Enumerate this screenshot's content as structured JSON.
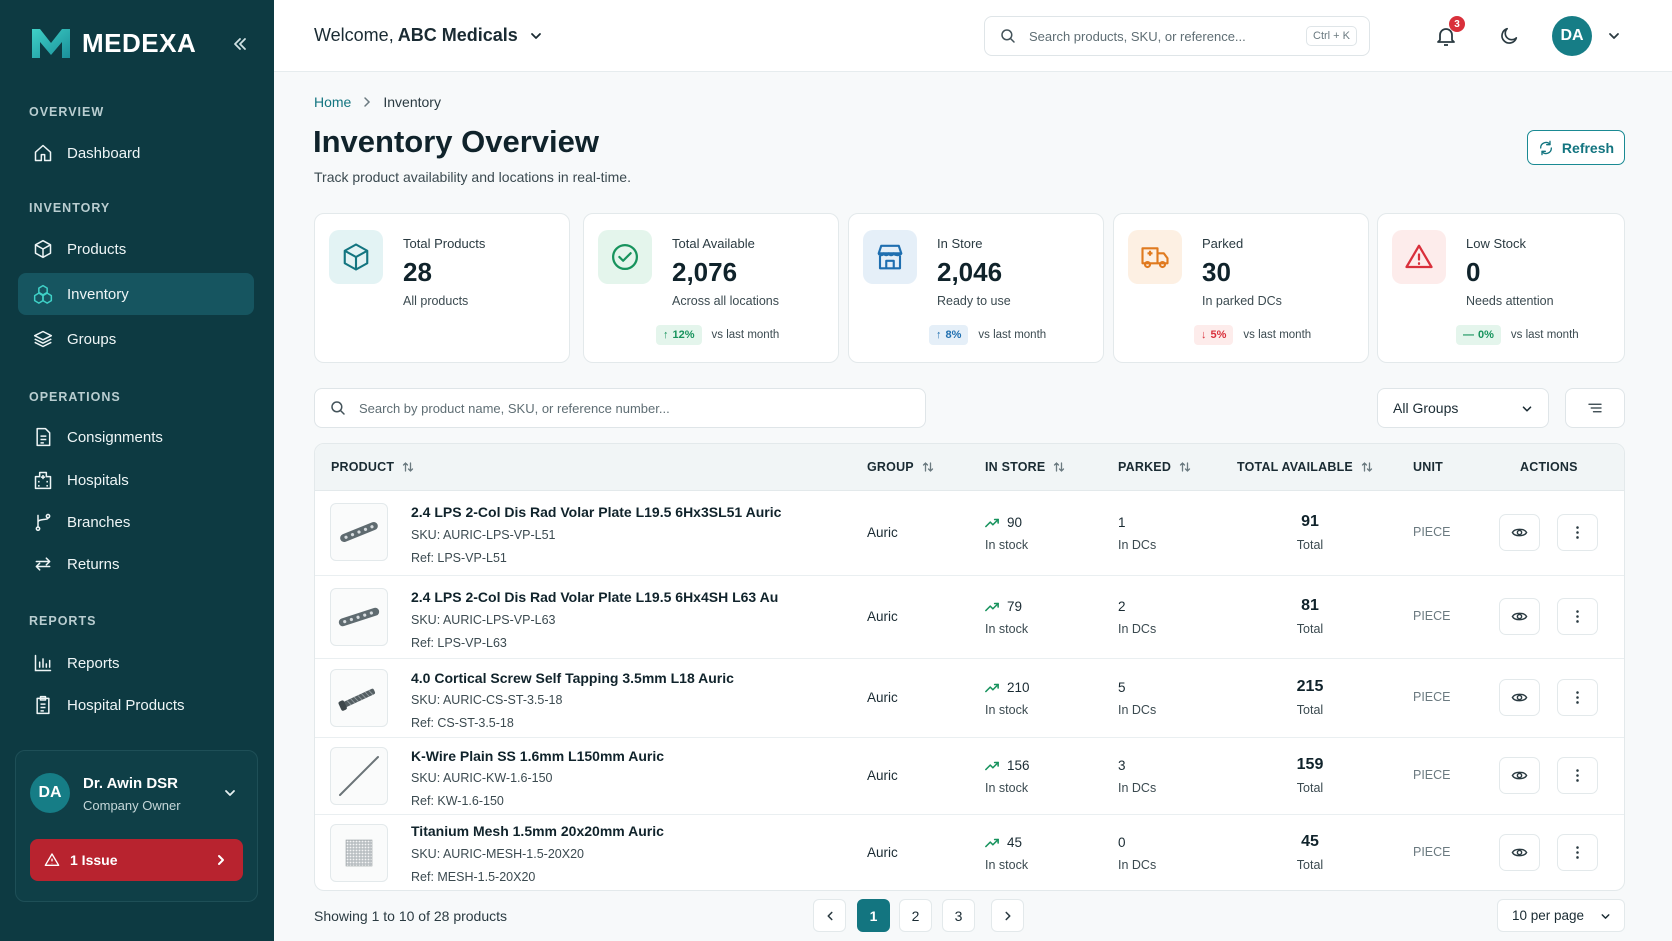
{
  "brand": {
    "name": "MEDEXA"
  },
  "sidebar": {
    "sections": [
      {
        "label": "OVERVIEW"
      },
      {
        "label": "INVENTORY"
      },
      {
        "label": "OPERATIONS"
      },
      {
        "label": "REPORTS"
      }
    ],
    "items": [
      {
        "label": "Dashboard",
        "icon": "home-icon"
      },
      {
        "label": "Products",
        "icon": "box-icon"
      },
      {
        "label": "Inventory",
        "icon": "inventory-icon",
        "active": true
      },
      {
        "label": "Groups",
        "icon": "layers-icon"
      },
      {
        "label": "Consignments",
        "icon": "document-icon"
      },
      {
        "label": "Hospitals",
        "icon": "hospital-icon"
      },
      {
        "label": "Branches",
        "icon": "branch-icon"
      },
      {
        "label": "Returns",
        "icon": "returns-icon"
      },
      {
        "label": "Reports",
        "icon": "bar-chart-icon"
      },
      {
        "label": "Hospital Products",
        "icon": "clipboard-icon"
      }
    ],
    "user": {
      "initials": "DA",
      "name": "Dr. Awin DSR",
      "role": "Company Owner",
      "issue_label": "1 Issue"
    }
  },
  "topbar": {
    "welcome_prefix": "Welcome,",
    "company": "ABC Medicals",
    "search_placeholder": "Search products, SKU, or reference...",
    "shortcut": "Ctrl + K",
    "notification_count": "3",
    "avatar_initials": "DA"
  },
  "page": {
    "breadcrumb_home": "Home",
    "breadcrumb_current": "Inventory",
    "title": "Inventory Overview",
    "subtitle": "Track product availability and locations in real-time.",
    "refresh_label": "Refresh"
  },
  "stats": [
    {
      "label": "Total Products",
      "value": "28",
      "desc": "All products",
      "icon": "cube-icon",
      "color": "#137580"
    },
    {
      "label": "Total Available",
      "value": "2,076",
      "desc": "Across all locations",
      "trend": "12%",
      "trend_dir": "up",
      "trend_note": "vs last month",
      "icon": "check-circle-icon",
      "color": "#17935d"
    },
    {
      "label": "In Store",
      "value": "2,046",
      "desc": "Ready to use",
      "trend": "8%",
      "trend_dir": "up",
      "trend_note": "vs last month",
      "icon": "store-icon",
      "color": "#1f6fb0"
    },
    {
      "label": "Parked",
      "value": "30",
      "desc": "In parked DCs",
      "trend": "5%",
      "trend_dir": "down",
      "trend_note": "vs last month",
      "icon": "truck-icon",
      "color": "#e07a1f"
    },
    {
      "label": "Low Stock",
      "value": "0",
      "desc": "Needs attention",
      "trend": "0%",
      "trend_dir": "flat",
      "trend_note": "vs last month",
      "icon": "warning-icon",
      "color": "#d9303b"
    }
  ],
  "filters": {
    "search_placeholder": "Search by product name, SKU, or reference number...",
    "group_value": "All Groups"
  },
  "table": {
    "columns": [
      "PRODUCT",
      "GROUP",
      "IN STORE",
      "PARKED",
      "TOTAL AVAILABLE",
      "UNIT",
      "ACTIONS"
    ],
    "rows": [
      {
        "name": "2.4 LPS 2-Col Dis Rad Volar Plate L19.5 6Hx3SL51 Auric",
        "sku": "SKU: AURIC-LPS-VP-L51",
        "ref": "Ref: LPS-VP-L51",
        "group": "Auric",
        "in_store": "90",
        "in_store_sub": "In stock",
        "parked": "1",
        "parked_sub": "In DCs",
        "total": "91",
        "total_sub": "Total",
        "unit": "PIECE",
        "image": "plate"
      },
      {
        "name": "2.4 LPS 2-Col Dis Rad Volar Plate L19.5 6Hx4SH L63 Au",
        "sku": "SKU: AURIC-LPS-VP-L63",
        "ref": "Ref: LPS-VP-L63",
        "group": "Auric",
        "in_store": "79",
        "in_store_sub": "In stock",
        "parked": "2",
        "parked_sub": "In DCs",
        "total": "81",
        "total_sub": "Total",
        "unit": "PIECE",
        "image": "plate"
      },
      {
        "name": "4.0 Cortical Screw Self Tapping 3.5mm L18 Auric",
        "sku": "SKU: AURIC-CS-ST-3.5-18",
        "ref": "Ref: CS-ST-3.5-18",
        "group": "Auric",
        "in_store": "210",
        "in_store_sub": "In stock",
        "parked": "5",
        "parked_sub": "In DCs",
        "total": "215",
        "total_sub": "Total",
        "unit": "PIECE",
        "image": "screw"
      },
      {
        "name": "K-Wire Plain SS 1.6mm L150mm Auric",
        "sku": "SKU: AURIC-KW-1.6-150",
        "ref": "Ref: KW-1.6-150",
        "group": "Auric",
        "in_store": "156",
        "in_store_sub": "In stock",
        "parked": "3",
        "parked_sub": "In DCs",
        "total": "159",
        "total_sub": "Total",
        "unit": "PIECE",
        "image": "wire"
      },
      {
        "name": "Titanium Mesh 1.5mm 20x20mm Auric",
        "sku": "SKU: AURIC-MESH-1.5-20X20",
        "ref": "Ref: MESH-1.5-20X20",
        "group": "Auric",
        "in_store": "45",
        "in_store_sub": "In stock",
        "parked": "0",
        "parked_sub": "In DCs",
        "total": "45",
        "total_sub": "Total",
        "unit": "PIECE",
        "image": "mesh"
      }
    ]
  },
  "pagination": {
    "showing": "Showing 1 to 10 of 28 products",
    "pages": [
      "1",
      "2",
      "3"
    ],
    "current": "1",
    "per_page": "10 per page"
  }
}
